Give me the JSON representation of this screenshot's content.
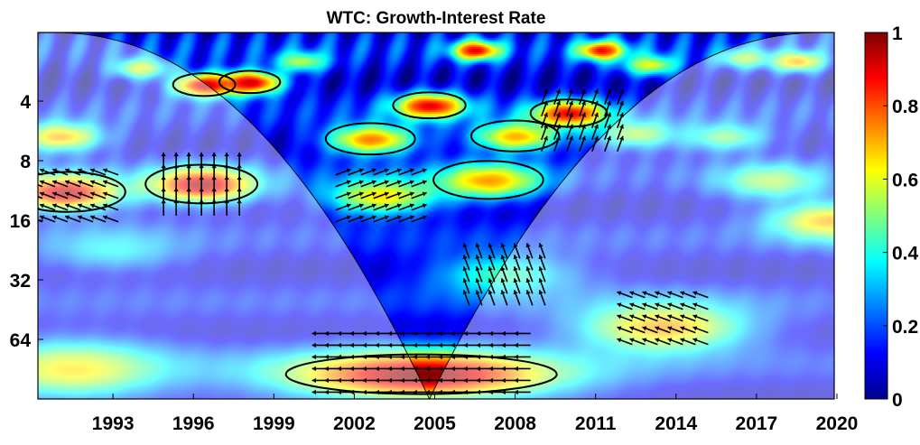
{
  "chart_data": {
    "type": "heatmap",
    "title": "WTC: Growth-Interest Rate",
    "xlabel": "",
    "ylabel": "",
    "x_ticks": [
      "1993",
      "1996",
      "1999",
      "2002",
      "2005",
      "2008",
      "2011",
      "2014",
      "2017",
      "2020"
    ],
    "x_tick_values": [
      1993,
      1996,
      1999,
      2002,
      2005,
      2008,
      2011,
      2014,
      2017,
      2020
    ],
    "xlim": [
      1990.2,
      2019.9
    ],
    "y_ticks": [
      "4",
      "8",
      "16",
      "32",
      "64"
    ],
    "y_tick_values": [
      4,
      8,
      16,
      32,
      64
    ],
    "ylim": [
      1.8,
      128
    ],
    "y_scale": "log2",
    "y_inverted": true,
    "colorbar": {
      "ticks": [
        "0",
        "0.2",
        "0.4",
        "0.6",
        "0.8",
        "1"
      ],
      "tick_values": [
        0,
        0.2,
        0.4,
        0.6,
        0.8,
        1
      ],
      "range": [
        0,
        1
      ],
      "colormap": "jet"
    },
    "background_coherence": 0.12,
    "regions": [
      {
        "year": 1996.3,
        "period": 10.5,
        "coherence": 0.97
      },
      {
        "year": 1991.2,
        "period": 11.5,
        "coherence": 0.95
      },
      {
        "year": 1996.4,
        "period": 3.3,
        "coherence": 0.93
      },
      {
        "year": 1998.1,
        "period": 3.2,
        "coherence": 0.92
      },
      {
        "year": 2004.8,
        "period": 4.2,
        "coherence": 0.9
      },
      {
        "year": 2010.0,
        "period": 4.6,
        "coherence": 0.9
      },
      {
        "year": 2006.5,
        "period": 2.2,
        "coherence": 0.9
      },
      {
        "year": 2011.2,
        "period": 2.2,
        "coherence": 0.88
      },
      {
        "year": 2004.5,
        "period": 96,
        "coherence": 1.0
      },
      {
        "year": 2003.0,
        "period": 12,
        "coherence": 0.65
      },
      {
        "year": 2007.0,
        "period": 10,
        "coherence": 0.72
      },
      {
        "year": 2002.6,
        "period": 6.2,
        "coherence": 0.75
      },
      {
        "year": 2008.0,
        "period": 6.0,
        "coherence": 0.7
      },
      {
        "year": 1991.0,
        "period": 6.0,
        "coherence": 0.7
      },
      {
        "year": 2007.6,
        "period": 30,
        "coherence": 0.45
      },
      {
        "year": 2013.5,
        "period": 55,
        "coherence": 0.72
      },
      {
        "year": 2017.5,
        "period": 10,
        "coherence": 0.55
      },
      {
        "year": 2019.7,
        "period": 16,
        "coherence": 0.7
      },
      {
        "year": 2012.5,
        "period": 5.8,
        "coherence": 0.55
      },
      {
        "year": 2015.8,
        "period": 6.0,
        "coherence": 0.5
      },
      {
        "year": 2000.0,
        "period": 2.5,
        "coherence": 0.55
      },
      {
        "year": 2013.0,
        "period": 2.6,
        "coherence": 0.6
      },
      {
        "year": 2016.5,
        "period": 2.4,
        "coherence": 0.55
      },
      {
        "year": 1994.0,
        "period": 2.7,
        "coherence": 0.6
      },
      {
        "year": 1991.5,
        "period": 90,
        "coherence": 0.65
      },
      {
        "year": 1993.0,
        "period": 22,
        "coherence": 0.38
      },
      {
        "year": 2018.5,
        "period": 2.5,
        "coherence": 0.7
      }
    ],
    "significance_contours": [
      {
        "year": 1996.3,
        "period": 10.5
      },
      {
        "year": 1991.3,
        "period": 11.5
      },
      {
        "year": 1996.4,
        "period": 3.3
      },
      {
        "year": 1998.1,
        "period": 3.2
      },
      {
        "year": 2004.8,
        "period": 4.2
      },
      {
        "year": 2010.0,
        "period": 4.6
      },
      {
        "year": 2002.6,
        "period": 6.2
      },
      {
        "year": 2008.0,
        "period": 6.0
      },
      {
        "year": 2007.0,
        "period": 10.0
      },
      {
        "year": 2004.5,
        "period": 96
      }
    ],
    "arrow_phases": [
      {
        "year": 1996.3,
        "period": 10.5,
        "angle_deg": 90
      },
      {
        "year": 1991.5,
        "period": 12,
        "angle_deg": 160
      },
      {
        "year": 2004.5,
        "period": 90,
        "angle_deg": 180
      },
      {
        "year": 2003.0,
        "period": 12,
        "angle_deg": 20
      },
      {
        "year": 2007.6,
        "period": 30,
        "angle_deg": 110
      },
      {
        "year": 2010.5,
        "period": 5,
        "angle_deg": 70
      },
      {
        "year": 2013.5,
        "period": 50,
        "angle_deg": 160
      }
    ],
    "cone_of_influence": {
      "apex_year": 2004.8,
      "apex_period": 128
    }
  }
}
